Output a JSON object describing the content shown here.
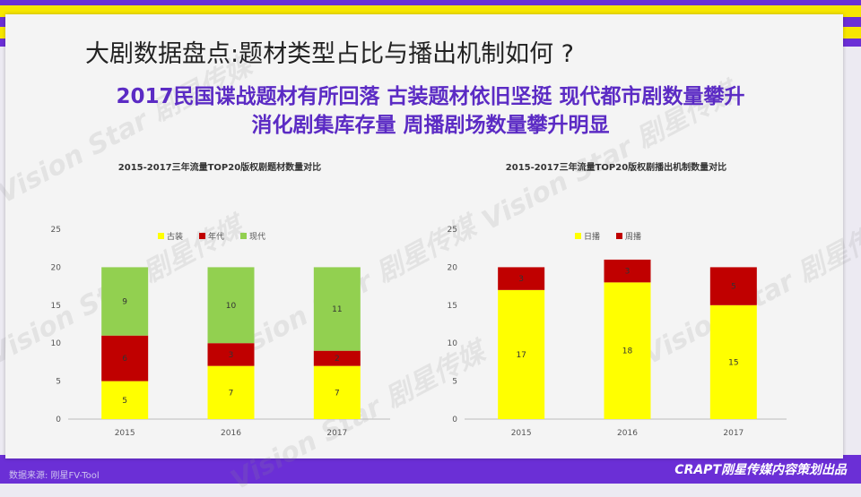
{
  "header": {
    "title": "大剧数据盘点:题材类型占比与播出机制如何 ?",
    "subtitle_line1": "2017民国谍战题材有所回落 古装题材依旧坚挺 现代都市剧数量攀升",
    "subtitle_line2": "消化剧集库存量 周播剧场数量攀升明显"
  },
  "footer": {
    "source": "数据来源: 刚星FV-Tool",
    "brand": "CRAPT刚星传媒内容策划出品"
  },
  "watermark": "Vision Star 剧星传媒",
  "colors": {
    "purple": "#6b2fd6",
    "yellow": "#ffff00",
    "red": "#c00000",
    "green": "#92d050"
  },
  "chart_data": [
    {
      "type": "bar",
      "stacked": true,
      "title": "2015-2017三年流量TOP20版权剧题材数量对比",
      "categories": [
        "2015",
        "2016",
        "2017"
      ],
      "series": [
        {
          "name": "古装",
          "values": [
            5,
            7,
            7
          ],
          "color": "#ffff00"
        },
        {
          "name": "年代",
          "values": [
            6,
            3,
            2
          ],
          "color": "#c00000"
        },
        {
          "name": "现代",
          "values": [
            9,
            10,
            11
          ],
          "color": "#92d050"
        }
      ],
      "ylim": [
        0,
        25
      ],
      "yticks": [
        0,
        5,
        10,
        15,
        20,
        25
      ],
      "legend": "top",
      "grid": false
    },
    {
      "type": "bar",
      "stacked": true,
      "title": "2015-2017三年流量TOP20版权剧播出机制数量对比",
      "categories": [
        "2015",
        "2016",
        "2017"
      ],
      "series": [
        {
          "name": "日播",
          "values": [
            17,
            18,
            15
          ],
          "color": "#ffff00"
        },
        {
          "name": "周播",
          "values": [
            3,
            3,
            5
          ],
          "color": "#c00000"
        }
      ],
      "ylim": [
        0,
        25
      ],
      "yticks": [
        0,
        5,
        10,
        15,
        20,
        25
      ],
      "legend": "top",
      "grid": false
    }
  ]
}
